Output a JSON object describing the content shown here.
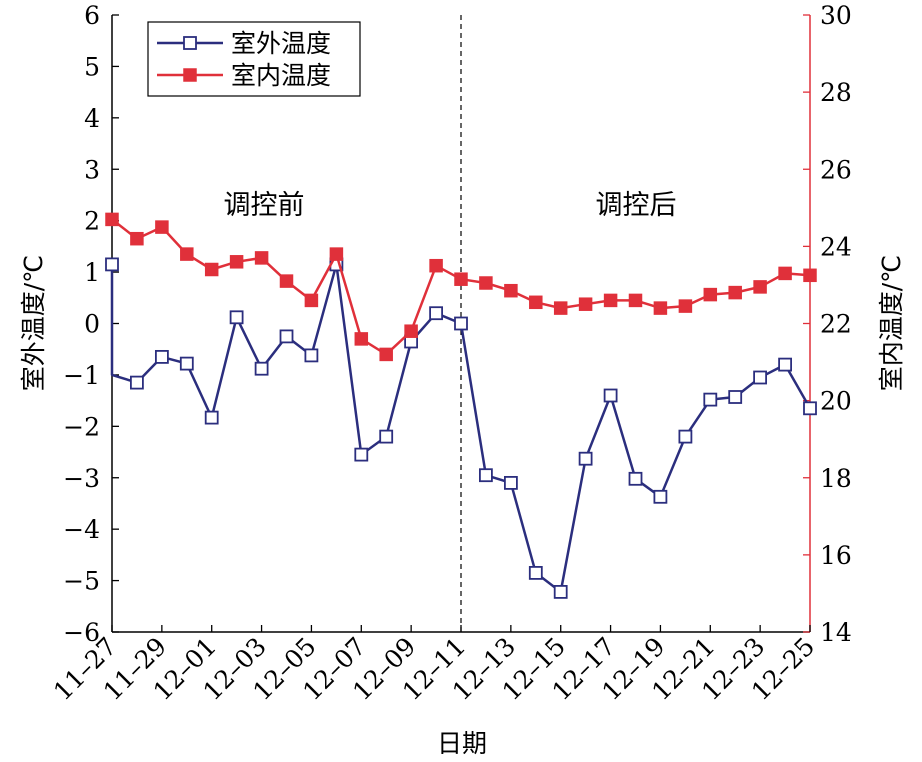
{
  "chart_data": {
    "type": "line",
    "xlabel": "日期",
    "ylabel_left": "室外温度/℃",
    "ylabel_right": "室内温度/℃",
    "ylim_left": [
      -6,
      6
    ],
    "yticks_left": [
      6,
      5,
      4,
      3,
      2,
      1,
      0,
      -1,
      -2,
      -3,
      -4,
      -5,
      -6
    ],
    "yticks_left_labels": [
      "6",
      "5",
      "4",
      "3",
      "2",
      "1",
      "0",
      "−1",
      "−2",
      "−3",
      "−4",
      "−5",
      "−6"
    ],
    "ylim_right": [
      14,
      30
    ],
    "yticks_right": [
      30,
      28,
      26,
      24,
      22,
      20,
      18,
      16,
      14
    ],
    "x_dates": [
      "11-27",
      "11-28",
      "11-29",
      "11-30",
      "12-01",
      "12-02",
      "12-03",
      "12-04",
      "12-05",
      "12-06",
      "12-07",
      "12-08",
      "12-09",
      "12-10",
      "12-11",
      "12-12",
      "12-13",
      "12-14",
      "12-15",
      "12-16",
      "12-17",
      "12-18",
      "12-19",
      "12-20",
      "12-21",
      "12-22",
      "12-23",
      "12-24",
      "12-25"
    ],
    "x_tick_labels": [
      "11–27",
      "11–29",
      "12–01",
      "12–03",
      "12–05",
      "12–07",
      "12–09",
      "12–11",
      "12–13",
      "12–15",
      "12–17",
      "12–19",
      "12–21",
      "12–23",
      "12–25"
    ],
    "legend": {
      "position": "top-left"
    },
    "annotations": {
      "before": "调控前",
      "after": "调控后"
    },
    "divider_at": "12-11",
    "colors": {
      "outdoor": "#2b2e7e",
      "indoor": "#e0303a",
      "right_axis": "#e0303a"
    },
    "series": [
      {
        "name": "室外温度",
        "axis": "left",
        "marker": "hollow-square",
        "x": [
          "11-27",
          "11-27",
          "11-28",
          "11-29",
          "11-30",
          "12-01",
          "12-02",
          "12-03",
          "12-04",
          "12-05",
          "12-06",
          "12-07",
          "12-08",
          "12-09",
          "12-10",
          "12-11",
          "12-12",
          "12-13",
          "12-14",
          "12-15",
          "12-16",
          "12-17",
          "12-18",
          "12-19",
          "12-20",
          "12-21",
          "12-22",
          "12-23",
          "12-24",
          "12-25"
        ],
        "values": [
          1.15,
          -1.0,
          -1.15,
          -0.65,
          -0.78,
          -1.83,
          0.12,
          -0.88,
          -0.25,
          -0.62,
          1.15,
          -2.55,
          -2.2,
          -0.35,
          0.2,
          0.0,
          -2.95,
          -3.1,
          -4.85,
          -5.22,
          -2.63,
          -1.4,
          -3.02,
          -3.37,
          -2.2,
          -1.48,
          -1.43,
          -1.05,
          -0.8,
          -1.65
        ],
        "hollow": [
          true,
          false,
          true,
          true,
          true,
          true,
          true,
          true,
          true,
          true,
          true,
          true,
          true,
          true,
          true,
          true,
          true,
          true,
          true,
          true,
          true,
          true,
          true,
          true,
          true,
          true,
          true,
          true,
          true,
          true
        ]
      },
      {
        "name": "室内温度",
        "axis": "right",
        "marker": "filled-square",
        "x": [
          "11-27",
          "11-28",
          "11-29",
          "11-30",
          "12-01",
          "12-02",
          "12-03",
          "12-04",
          "12-05",
          "12-06",
          "12-07",
          "12-08",
          "12-09",
          "12-10",
          "12-11",
          "12-12",
          "12-13",
          "12-14",
          "12-15",
          "12-16",
          "12-17",
          "12-18",
          "12-19",
          "12-20",
          "12-21",
          "12-22",
          "12-23",
          "12-24",
          "12-25"
        ],
        "values": [
          24.7,
          24.2,
          24.5,
          23.8,
          23.4,
          23.6,
          23.7,
          23.1,
          22.6,
          23.8,
          21.6,
          21.2,
          21.8,
          23.5,
          23.15,
          23.05,
          22.85,
          22.55,
          22.4,
          22.5,
          22.6,
          22.6,
          22.4,
          22.45,
          22.75,
          22.8,
          22.95,
          23.3,
          23.25
        ]
      }
    ]
  }
}
